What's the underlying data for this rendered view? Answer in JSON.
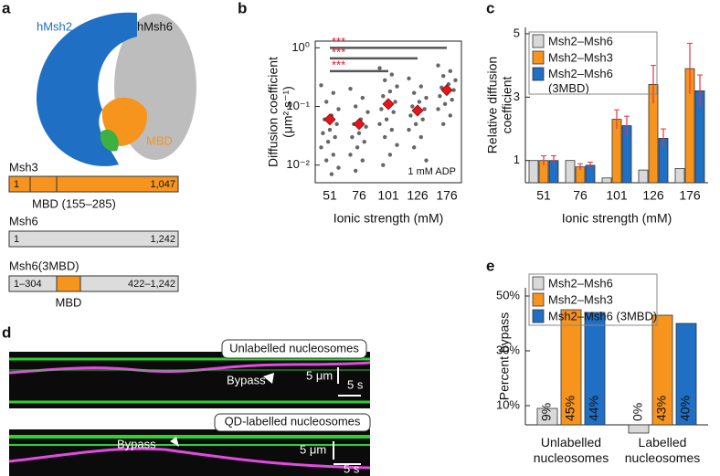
{
  "panel_labels": [
    "a",
    "b",
    "c",
    "d",
    "e"
  ],
  "structure": {
    "labels": [
      "hMsh2",
      "hMsh6",
      "MBD"
    ]
  },
  "domains": [
    {
      "name": "Msh3",
      "start": "1",
      "end": "1,047",
      "note": "MBD (155–285)"
    },
    {
      "name": "Msh6",
      "start": "1",
      "end": "1,242"
    },
    {
      "name": "Msh6(3MBD)",
      "start": "1–304",
      "middle": "MBD",
      "end": "422–1,242"
    }
  ],
  "kymographs": [
    {
      "label": "Unlabelled nucleosomes",
      "arrow": "Bypass",
      "scale_x": "5 μm",
      "scale_t": "5 s"
    },
    {
      "label": "QD-labelled nucleosomes",
      "arrow": "Bypass",
      "scale_x": "5 μm",
      "scale_t": "5 s"
    }
  ],
  "chart_data": [
    {
      "type": "dotplot",
      "y_label": [
        "Diffusion coefficient",
        "(μm² s⁻¹)"
      ],
      "x_label": "Ionic strength (mM)",
      "categories": [
        "51",
        "76",
        "101",
        "126",
        "176"
      ],
      "log_y": true,
      "ylim": [
        0.005,
        1.3
      ],
      "yticks": [
        {
          "value": 0.01,
          "label": "10⁻²"
        },
        {
          "value": 0.1,
          "label": "10⁻¹"
        },
        {
          "value": 1,
          "label": "10⁰"
        }
      ],
      "point_color": "#666666",
      "mean_color": "#e8141b",
      "points": [
        [
          0.23,
          0.17,
          0.12,
          0.09,
          0.07,
          0.06,
          0.05,
          0.04,
          0.035,
          0.03,
          0.025,
          0.02,
          0.015,
          0.012,
          0.009,
          0.007
        ],
        [
          0.2,
          0.14,
          0.1,
          0.08,
          0.06,
          0.05,
          0.045,
          0.035,
          0.03,
          0.025,
          0.02,
          0.015,
          0.012,
          0.008
        ],
        [
          0.45,
          0.35,
          0.28,
          0.22,
          0.18,
          0.15,
          0.12,
          0.1,
          0.09,
          0.08,
          0.06,
          0.05,
          0.04,
          0.03,
          0.022,
          0.015,
          0.01
        ],
        [
          0.3,
          0.22,
          0.17,
          0.14,
          0.12,
          0.1,
          0.09,
          0.08,
          0.07,
          0.06,
          0.05,
          0.04,
          0.03,
          0.02,
          0.012
        ],
        [
          0.5,
          0.4,
          0.33,
          0.28,
          0.24,
          0.21,
          0.19,
          0.17,
          0.15,
          0.13,
          0.11,
          0.09,
          0.07,
          0.05
        ]
      ],
      "means": [
        0.06,
        0.05,
        0.11,
        0.085,
        0.19
      ],
      "significance": [
        {
          "text": "***",
          "from": "51",
          "to": "176",
          "y": 1.0
        },
        {
          "text": "***",
          "from": "51",
          "to": "126",
          "y": 0.66
        },
        {
          "text": "***",
          "from": "51",
          "to": "101",
          "y": 0.4
        }
      ],
      "annotation": "1 mM ADP"
    },
    {
      "type": "bar",
      "y_label": [
        "Relative diffusion",
        "coefficient"
      ],
      "x_label": "Ionic strength (mM)",
      "categories": [
        "51",
        "76",
        "101",
        "126",
        "176"
      ],
      "ylim": [
        0.3,
        5.2
      ],
      "yticks": [
        1,
        3,
        5
      ],
      "series": [
        {
          "name": "Msh2–Msh6",
          "color": "#d9d9d9",
          "values": [
            1,
            1,
            0.45,
            0.7,
            0.75
          ]
        },
        {
          "name": "Msh2–Msh3",
          "color": "#f7941d",
          "values": [
            1,
            0.8,
            2.3,
            3.4,
            3.9
          ],
          "errors": [
            0.15,
            0.1,
            0.3,
            0.6,
            0.8
          ]
        },
        {
          "name": "Msh2–Msh6 (3MBD)",
          "color": "#1f6fc5",
          "values": [
            1,
            0.85,
            2.1,
            1.7,
            3.2
          ],
          "errors": [
            0.15,
            0.1,
            0.3,
            0.3,
            0.5
          ]
        }
      ]
    },
    {
      "type": "bar",
      "y_label": [
        "Percent bypass"
      ],
      "categories": [
        "Unlabelled nucleosomes",
        "Labelled nucleosomes"
      ],
      "ylim": [
        3,
        53
      ],
      "yticks": [
        {
          "value": 10,
          "label": "10%"
        },
        {
          "value": 30,
          "label": "30%"
        },
        {
          "value": 50,
          "label": "50%"
        }
      ],
      "series": [
        {
          "name": "Msh2–Msh6",
          "color": "#d9d9d9",
          "values": [
            9,
            0
          ],
          "value_labels": [
            "9%",
            "0%"
          ]
        },
        {
          "name": "Msh2–Msh3",
          "color": "#f7941d",
          "values": [
            45,
            43
          ],
          "value_labels": [
            "45%",
            "43%"
          ]
        },
        {
          "name": "Msh2–Msh6 (3MBD)",
          "color": "#1f6fc5",
          "values": [
            44,
            40
          ],
          "value_labels": [
            "44%",
            "40%"
          ]
        }
      ]
    }
  ]
}
